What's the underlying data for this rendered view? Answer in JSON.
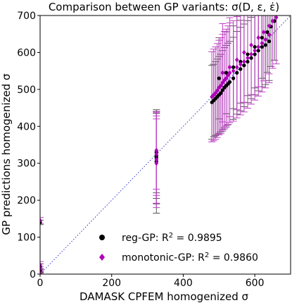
{
  "chart_data": {
    "type": "scatter",
    "title": "Comparison between GP variants: σ(D, ε, ε̇)",
    "xlabel": "DAMASK CPFEM homogenized σ",
    "ylabel": "GP predictions homogenized σ",
    "xlim": [
      0,
      700
    ],
    "ylim": [
      0,
      700
    ],
    "xticks": [
      0,
      200,
      400,
      600
    ],
    "yticks": [
      0,
      100,
      200,
      300,
      400,
      500,
      600,
      700
    ],
    "grid": false,
    "legend_position": "bottom-right",
    "reference_line": {
      "style": "dotted",
      "color": "#3333cc",
      "from": [
        0,
        0
      ],
      "to": [
        700,
        700
      ]
    },
    "series": [
      {
        "name": "reg-GP: R² = 0.9895",
        "marker": "circle",
        "color": "#000000",
        "errorbar_color": "#555555",
        "points": [
          {
            "x": 0,
            "y": 0,
            "err": 3
          },
          {
            "x": 0,
            "y": 10,
            "err": 5
          },
          {
            "x": 0,
            "y": 20,
            "err": 8
          },
          {
            "x": 0,
            "y": 140,
            "err": 6
          },
          {
            "x": 325,
            "y": 305,
            "err": 140
          },
          {
            "x": 325,
            "y": 315,
            "err": 125
          },
          {
            "x": 325,
            "y": 320,
            "err": 115
          },
          {
            "x": 325,
            "y": 330,
            "err": 110
          },
          {
            "x": 480,
            "y": 465,
            "err": 100
          },
          {
            "x": 485,
            "y": 470,
            "err": 98
          },
          {
            "x": 490,
            "y": 475,
            "err": 100
          },
          {
            "x": 495,
            "y": 480,
            "err": 102
          },
          {
            "x": 500,
            "y": 485,
            "err": 104
          },
          {
            "x": 505,
            "y": 490,
            "err": 105
          },
          {
            "x": 510,
            "y": 498,
            "err": 107
          },
          {
            "x": 515,
            "y": 505,
            "err": 108
          },
          {
            "x": 520,
            "y": 510,
            "err": 109
          },
          {
            "x": 525,
            "y": 515,
            "err": 110
          },
          {
            "x": 530,
            "y": 520,
            "err": 110
          },
          {
            "x": 540,
            "y": 530,
            "err": 111
          },
          {
            "x": 550,
            "y": 545,
            "err": 112
          },
          {
            "x": 560,
            "y": 555,
            "err": 113
          },
          {
            "x": 570,
            "y": 565,
            "err": 112
          },
          {
            "x": 580,
            "y": 575,
            "err": 111
          },
          {
            "x": 590,
            "y": 585,
            "err": 110
          },
          {
            "x": 600,
            "y": 595,
            "err": 110
          },
          {
            "x": 610,
            "y": 605,
            "err": 109
          },
          {
            "x": 620,
            "y": 615,
            "err": 108
          },
          {
            "x": 630,
            "y": 620,
            "err": 107
          },
          {
            "x": 640,
            "y": 630,
            "err": 106
          },
          {
            "x": 500,
            "y": 530,
            "err": 110
          },
          {
            "x": 520,
            "y": 545,
            "err": 111
          },
          {
            "x": 540,
            "y": 560,
            "err": 112
          },
          {
            "x": 560,
            "y": 575,
            "err": 112
          },
          {
            "x": 580,
            "y": 595,
            "err": 112
          },
          {
            "x": 600,
            "y": 615,
            "err": 111
          },
          {
            "x": 620,
            "y": 640,
            "err": 110
          },
          {
            "x": 635,
            "y": 655,
            "err": 109
          },
          {
            "x": 645,
            "y": 670,
            "err": 108
          },
          {
            "x": 655,
            "y": 685,
            "err": 106
          }
        ]
      },
      {
        "name": "monotonic-GP: R² = 0.9860",
        "marker": "diamond",
        "color": "#b000b8",
        "errorbar_color": "#c040c8",
        "points": [
          {
            "x": 0,
            "y": 3,
            "err": 4
          },
          {
            "x": 0,
            "y": 15,
            "err": 6
          },
          {
            "x": 0,
            "y": 25,
            "err": 9
          },
          {
            "x": 0,
            "y": 145,
            "err": 8
          },
          {
            "x": 325,
            "y": 300,
            "err": 120
          },
          {
            "x": 325,
            "y": 310,
            "err": 118
          },
          {
            "x": 325,
            "y": 325,
            "err": 112
          },
          {
            "x": 325,
            "y": 335,
            "err": 105
          },
          {
            "x": 480,
            "y": 480,
            "err": 122
          },
          {
            "x": 485,
            "y": 485,
            "err": 124
          },
          {
            "x": 490,
            "y": 490,
            "err": 125
          },
          {
            "x": 495,
            "y": 497,
            "err": 127
          },
          {
            "x": 500,
            "y": 505,
            "err": 128
          },
          {
            "x": 505,
            "y": 510,
            "err": 130
          },
          {
            "x": 510,
            "y": 518,
            "err": 131
          },
          {
            "x": 515,
            "y": 525,
            "err": 132
          },
          {
            "x": 520,
            "y": 530,
            "err": 133
          },
          {
            "x": 525,
            "y": 538,
            "err": 134
          },
          {
            "x": 530,
            "y": 545,
            "err": 135
          },
          {
            "x": 540,
            "y": 550,
            "err": 136
          },
          {
            "x": 550,
            "y": 560,
            "err": 137
          },
          {
            "x": 560,
            "y": 568,
            "err": 137
          },
          {
            "x": 570,
            "y": 575,
            "err": 136
          },
          {
            "x": 580,
            "y": 585,
            "err": 136
          },
          {
            "x": 590,
            "y": 595,
            "err": 135
          },
          {
            "x": 600,
            "y": 605,
            "err": 134
          },
          {
            "x": 610,
            "y": 615,
            "err": 133
          },
          {
            "x": 620,
            "y": 625,
            "err": 132
          },
          {
            "x": 630,
            "y": 635,
            "err": 131
          },
          {
            "x": 640,
            "y": 648,
            "err": 130
          },
          {
            "x": 510,
            "y": 545,
            "err": 133
          },
          {
            "x": 530,
            "y": 560,
            "err": 134
          },
          {
            "x": 550,
            "y": 580,
            "err": 135
          },
          {
            "x": 570,
            "y": 600,
            "err": 135
          },
          {
            "x": 590,
            "y": 620,
            "err": 134
          },
          {
            "x": 610,
            "y": 640,
            "err": 133
          },
          {
            "x": 625,
            "y": 655,
            "err": 132
          },
          {
            "x": 640,
            "y": 672,
            "err": 130
          },
          {
            "x": 650,
            "y": 685,
            "err": 128
          },
          {
            "x": 660,
            "y": 695,
            "err": 126
          }
        ]
      }
    ]
  }
}
